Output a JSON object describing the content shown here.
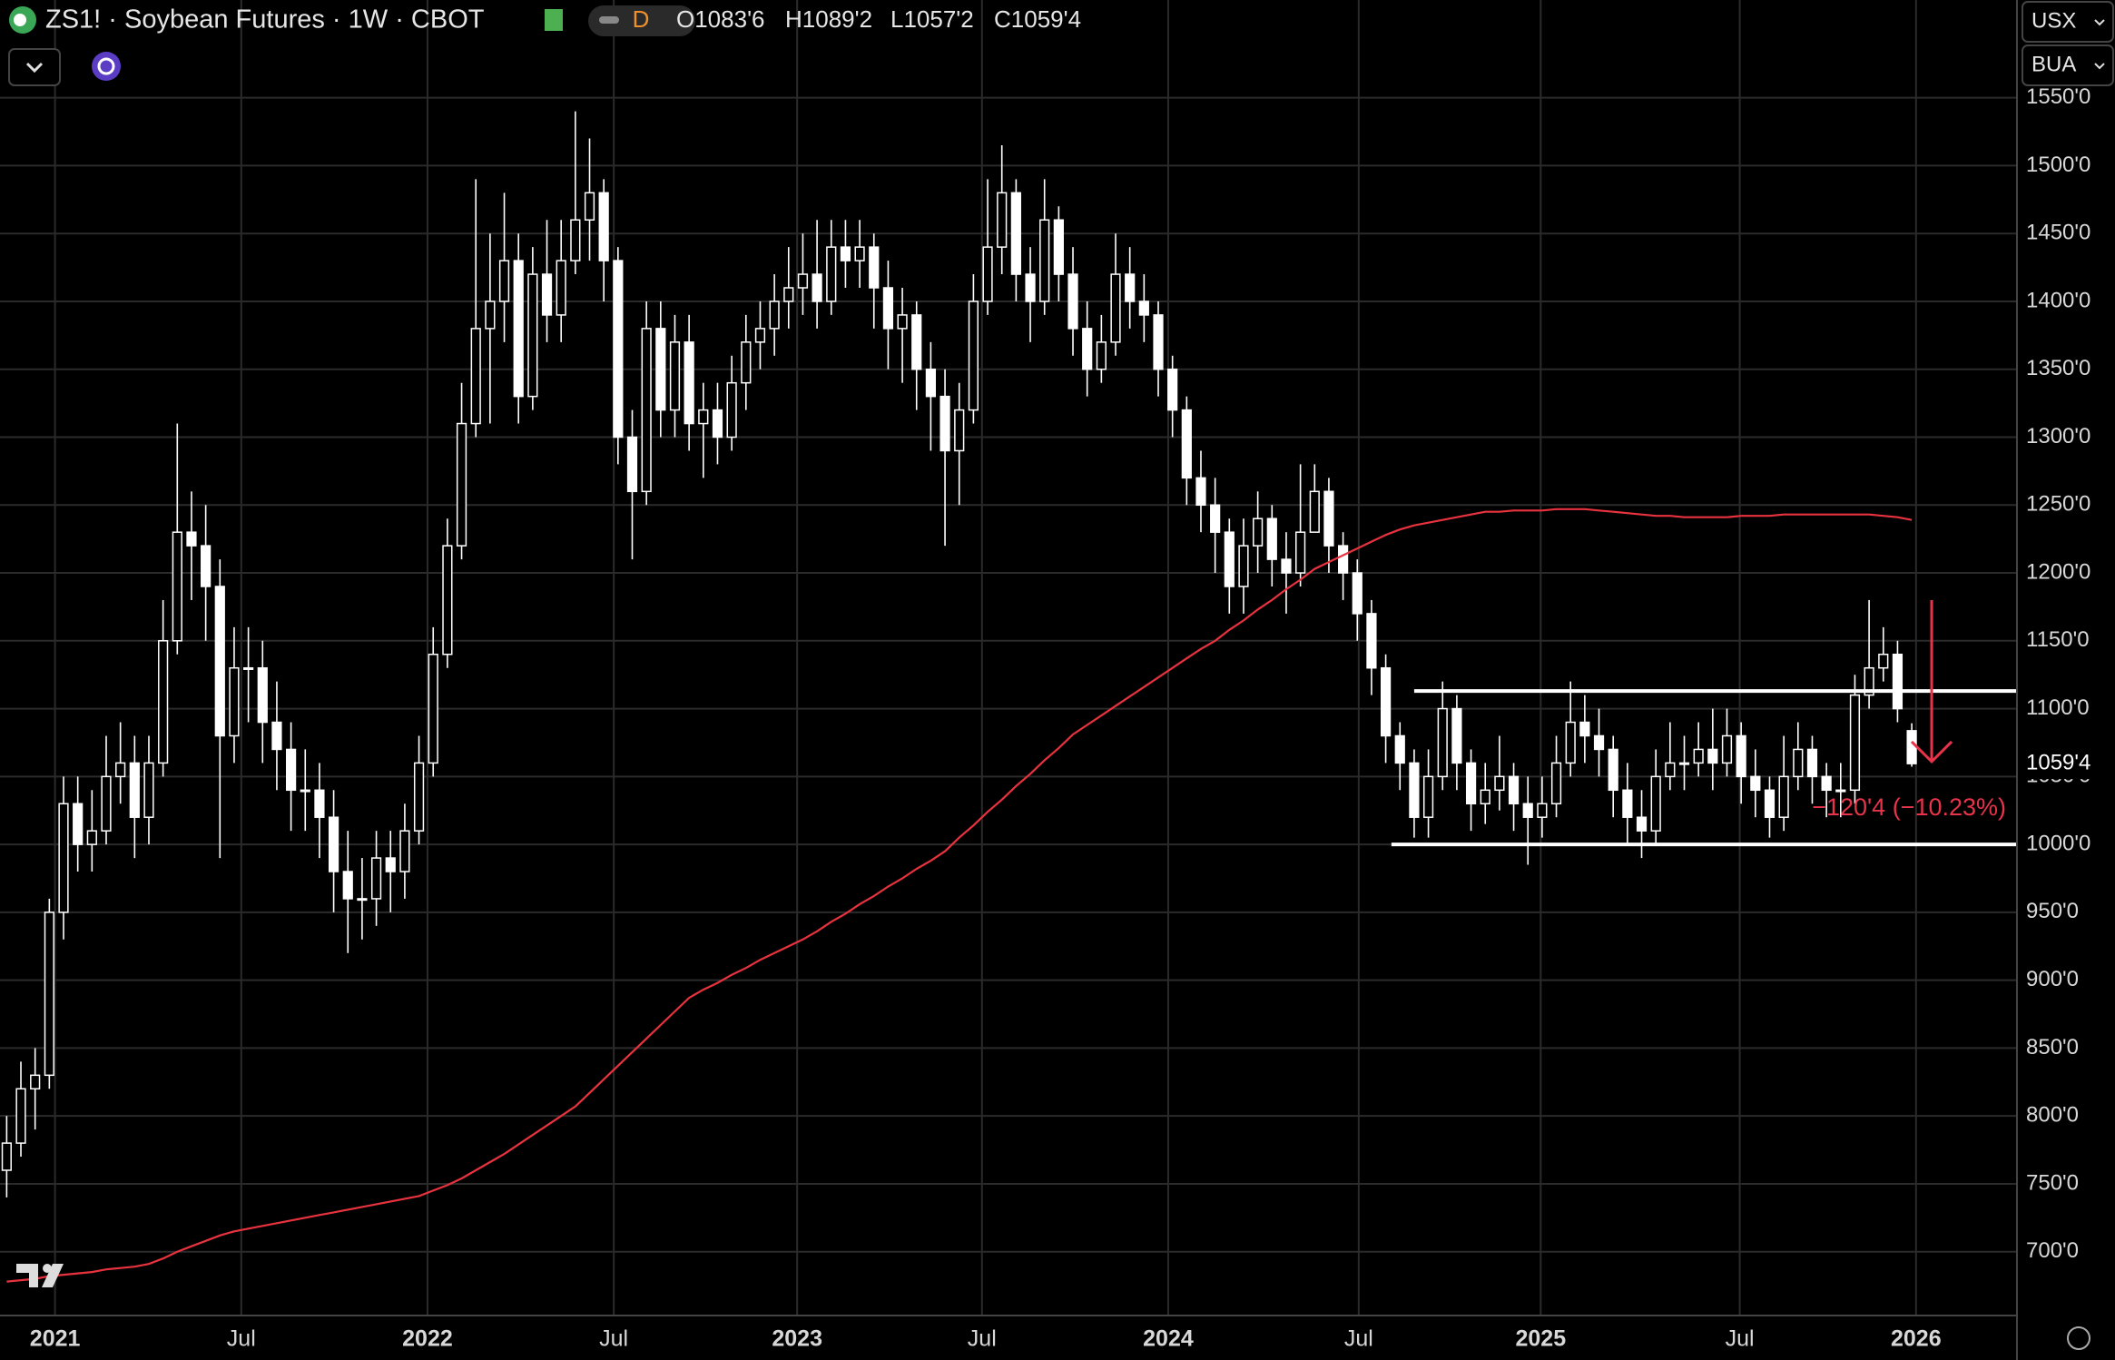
{
  "header": {
    "symbol": "ZS1! · Soybean Futures · 1W · CBOT",
    "badge": "D",
    "ohlc": [
      "O1083'6",
      "H1089'2",
      "L1057'2",
      "C1059'4"
    ],
    "buttons": [
      "USX",
      "BUA"
    ]
  },
  "chart_data": {
    "type": "candlestick",
    "grid": true,
    "color": "#ffffff",
    "xlim": [
      -0.47,
      141.4
    ],
    "xticks": [
      {
        "value": 3.4,
        "label": "2021"
      },
      {
        "value": 16.5,
        "label": "Jul"
      },
      {
        "value": 29.6,
        "label": "2022"
      },
      {
        "value": 42.7,
        "label": "Jul"
      },
      {
        "value": 55.6,
        "label": "2023"
      },
      {
        "value": 68.6,
        "label": "Jul"
      },
      {
        "value": 81.7,
        "label": "2024"
      },
      {
        "value": 95.1,
        "label": "Jul"
      },
      {
        "value": 107.9,
        "label": "2025"
      },
      {
        "value": 121.9,
        "label": "Jul"
      },
      {
        "value": 134.3,
        "label": "2026"
      }
    ],
    "ylim": [
      653,
      1622
    ],
    "yticks": [
      {
        "value": 700,
        "label": "700'0"
      },
      {
        "value": 750,
        "label": "750'0"
      },
      {
        "value": 800,
        "label": "800'0"
      },
      {
        "value": 850,
        "label": "850'0"
      },
      {
        "value": 900,
        "label": "900'0"
      },
      {
        "value": 950,
        "label": "950'0"
      },
      {
        "value": 1000,
        "label": "1000'0"
      },
      {
        "value": 1050,
        "label": "1050'0"
      },
      {
        "value": 1100,
        "label": "1100'0"
      },
      {
        "value": 1150,
        "label": "1150'0"
      },
      {
        "value": 1200,
        "label": "1200'0"
      },
      {
        "value": 1250,
        "label": "1250'0"
      },
      {
        "value": 1300,
        "label": "1300'0"
      },
      {
        "value": 1350,
        "label": "1350'0"
      },
      {
        "value": 1400,
        "label": "1400'0"
      },
      {
        "value": 1450,
        "label": "1450'0"
      },
      {
        "value": 1500,
        "label": "1500'0"
      },
      {
        "value": 1550,
        "label": "1550'0"
      }
    ],
    "open": [
      760,
      780,
      820,
      830,
      950,
      1030,
      1000,
      1010,
      1050,
      1060,
      1020,
      1060,
      1150,
      1230,
      1220,
      1190,
      1080,
      1130,
      1130,
      1090,
      1070,
      1040,
      1040,
      1020,
      980,
      960,
      960,
      990,
      980,
      1010,
      1060,
      1140,
      1220,
      1310,
      1380,
      1400,
      1430,
      1330,
      1420,
      1390,
      1430,
      1460,
      1480,
      1430,
      1300,
      1260,
      1380,
      1320,
      1370,
      1310,
      1320,
      1300,
      1340,
      1370,
      1380,
      1400,
      1410,
      1420,
      1400,
      1440,
      1430,
      1440,
      1410,
      1380,
      1390,
      1350,
      1330,
      1290,
      1320,
      1400,
      1440,
      1480,
      1420,
      1400,
      1460,
      1420,
      1380,
      1350,
      1370,
      1420,
      1400,
      1390,
      1350,
      1320,
      1270,
      1250,
      1230,
      1190,
      1220,
      1240,
      1210,
      1200,
      1230,
      1260,
      1220,
      1200,
      1170,
      1130,
      1080,
      1060,
      1020,
      1050,
      1100,
      1060,
      1030,
      1040,
      1050,
      1030,
      1020,
      1030,
      1060,
      1090,
      1080,
      1070,
      1040,
      1020,
      1010,
      1050,
      1060,
      1060,
      1070,
      1060,
      1080,
      1050,
      1040,
      1020,
      1050,
      1070,
      1050,
      1040,
      1040,
      1110,
      1130,
      1140,
      1083.75
    ],
    "high": [
      800,
      840,
      850,
      960,
      1050,
      1050,
      1040,
      1080,
      1090,
      1080,
      1080,
      1180,
      1310,
      1260,
      1250,
      1210,
      1160,
      1160,
      1150,
      1120,
      1090,
      1070,
      1060,
      1040,
      1010,
      990,
      1010,
      1010,
      1030,
      1080,
      1160,
      1240,
      1340,
      1490,
      1450,
      1480,
      1450,
      1440,
      1460,
      1460,
      1540,
      1520,
      1490,
      1440,
      1320,
      1400,
      1400,
      1390,
      1390,
      1340,
      1340,
      1360,
      1390,
      1400,
      1420,
      1440,
      1450,
      1460,
      1460,
      1460,
      1460,
      1450,
      1430,
      1410,
      1400,
      1370,
      1350,
      1340,
      1420,
      1490,
      1515,
      1490,
      1440,
      1490,
      1470,
      1440,
      1400,
      1390,
      1450,
      1440,
      1420,
      1400,
      1360,
      1330,
      1290,
      1270,
      1240,
      1240,
      1260,
      1250,
      1230,
      1280,
      1280,
      1270,
      1230,
      1210,
      1180,
      1140,
      1090,
      1070,
      1070,
      1120,
      1110,
      1070,
      1060,
      1080,
      1060,
      1050,
      1050,
      1080,
      1120,
      1110,
      1100,
      1080,
      1060,
      1040,
      1070,
      1090,
      1080,
      1090,
      1100,
      1100,
      1090,
      1070,
      1050,
      1080,
      1090,
      1080,
      1060,
      1060,
      1125,
      1180,
      1160,
      1150,
      1089.25
    ],
    "low": [
      740,
      770,
      790,
      820,
      930,
      980,
      980,
      1000,
      1030,
      990,
      1000,
      1050,
      1140,
      1180,
      1150,
      990,
      1060,
      1090,
      1060,
      1040,
      1010,
      1010,
      990,
      950,
      920,
      930,
      940,
      950,
      960,
      1000,
      1050,
      1130,
      1210,
      1300,
      1310,
      1370,
      1310,
      1320,
      1370,
      1370,
      1420,
      1430,
      1400,
      1280,
      1210,
      1250,
      1300,
      1300,
      1290,
      1270,
      1280,
      1290,
      1320,
      1350,
      1360,
      1380,
      1390,
      1380,
      1390,
      1410,
      1410,
      1380,
      1350,
      1340,
      1320,
      1290,
      1220,
      1250,
      1310,
      1390,
      1420,
      1400,
      1370,
      1390,
      1400,
      1360,
      1330,
      1340,
      1360,
      1380,
      1370,
      1330,
      1300,
      1250,
      1230,
      1200,
      1170,
      1170,
      1200,
      1190,
      1170,
      1190,
      1230,
      1200,
      1180,
      1150,
      1110,
      1060,
      1040,
      1005,
      1005,
      1040,
      1040,
      1010,
      1015,
      1025,
      1010,
      985,
      1005,
      1020,
      1050,
      1060,
      1050,
      1020,
      1000,
      990,
      1000,
      1040,
      1040,
      1050,
      1040,
      1050,
      1030,
      1020,
      1005,
      1010,
      1040,
      1030,
      1020,
      1020,
      1030,
      1100,
      1120,
      1090,
      1057.25
    ],
    "close": [
      780,
      820,
      830,
      950,
      1030,
      1000,
      1010,
      1050,
      1060,
      1020,
      1060,
      1150,
      1230,
      1220,
      1190,
      1080,
      1130,
      1130,
      1090,
      1070,
      1040,
      1040,
      1020,
      980,
      960,
      960,
      990,
      980,
      1010,
      1060,
      1140,
      1220,
      1310,
      1380,
      1400,
      1430,
      1330,
      1420,
      1390,
      1430,
      1460,
      1480,
      1430,
      1300,
      1260,
      1380,
      1320,
      1370,
      1310,
      1320,
      1300,
      1340,
      1370,
      1380,
      1400,
      1410,
      1420,
      1400,
      1440,
      1430,
      1440,
      1410,
      1380,
      1390,
      1350,
      1330,
      1290,
      1320,
      1400,
      1440,
      1480,
      1420,
      1400,
      1460,
      1420,
      1380,
      1350,
      1370,
      1420,
      1400,
      1390,
      1350,
      1320,
      1270,
      1250,
      1230,
      1190,
      1220,
      1240,
      1210,
      1200,
      1230,
      1260,
      1220,
      1200,
      1170,
      1130,
      1080,
      1060,
      1020,
      1050,
      1100,
      1060,
      1030,
      1040,
      1050,
      1030,
      1020,
      1030,
      1060,
      1090,
      1080,
      1070,
      1040,
      1020,
      1010,
      1050,
      1060,
      1060,
      1070,
      1060,
      1080,
      1050,
      1040,
      1020,
      1050,
      1070,
      1050,
      1040,
      1040,
      1110,
      1130,
      1140,
      1100,
      1059.5
    ],
    "ma": {
      "color": "#e8333f",
      "values": [
        678,
        679,
        680,
        682,
        683,
        684,
        685,
        687,
        688,
        689,
        691,
        695,
        700,
        704,
        708,
        712,
        715,
        717,
        719,
        721,
        723,
        725,
        727,
        729,
        731,
        733,
        735,
        737,
        739,
        741,
        745,
        749,
        754,
        760,
        766,
        772,
        779,
        786,
        793,
        800,
        807,
        817,
        827,
        837,
        847,
        857,
        867,
        877,
        887,
        893,
        898,
        904,
        909,
        915,
        920,
        925,
        930,
        936,
        943,
        949,
        956,
        962,
        969,
        975,
        982,
        988,
        995,
        1005,
        1014,
        1024,
        1033,
        1043,
        1052,
        1062,
        1071,
        1081,
        1088,
        1095,
        1102,
        1109,
        1116,
        1123,
        1130,
        1137,
        1144,
        1150,
        1158,
        1165,
        1173,
        1180,
        1188,
        1195,
        1203,
        1208,
        1213,
        1218,
        1223,
        1228,
        1232,
        1235,
        1237,
        1239,
        1241,
        1243,
        1245,
        1245,
        1246,
        1246,
        1246,
        1247,
        1247,
        1247,
        1246,
        1245,
        1244,
        1243,
        1242,
        1242,
        1241,
        1241,
        1241,
        1241,
        1242,
        1242,
        1242,
        1243,
        1243,
        1243,
        1243,
        1243,
        1243,
        1243,
        1242,
        1241,
        1239
      ]
    },
    "hlines": [
      {
        "y": 1113,
        "x0": 99
      },
      {
        "y": 1000,
        "x0": 97.4
      }
    ],
    "arrow": {
      "x": 135.4,
      "y_from": 1180,
      "y_to": 1061,
      "color": "#e8334a",
      "label": "−120'4 (−10.23%)"
    },
    "last_price": {
      "value": 1059.5,
      "label": "1059'4"
    }
  }
}
